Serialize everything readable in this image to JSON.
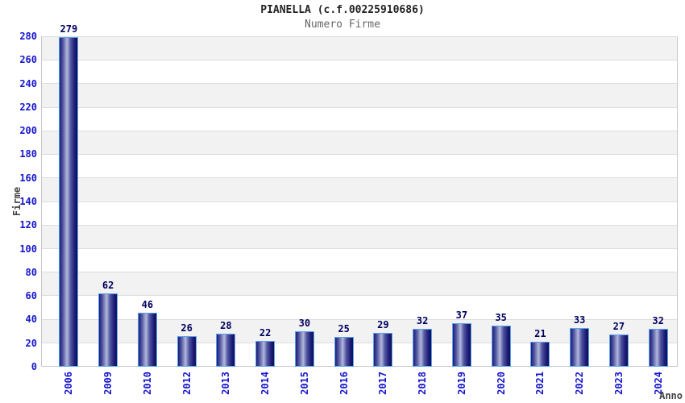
{
  "chart_data": {
    "type": "bar",
    "title": "PIANELLA (c.f.00225910686)",
    "subtitle": "Numero Firme",
    "xlabel": "Anno",
    "ylabel": "Firme",
    "categories": [
      "2006",
      "2009",
      "2010",
      "2012",
      "2013",
      "2014",
      "2015",
      "2016",
      "2017",
      "2018",
      "2019",
      "2020",
      "2021",
      "2022",
      "2023",
      "2024"
    ],
    "values": [
      279,
      62,
      46,
      26,
      28,
      22,
      30,
      25,
      29,
      32,
      37,
      35,
      21,
      33,
      27,
      32
    ],
    "ylim": [
      0,
      280
    ],
    "ytick_step": 20,
    "grid": "alternating-horizontal-bands",
    "legend": "none",
    "colors": {
      "tick_label": "#1515cd",
      "value_label": "#00005f",
      "title": "#222222",
      "subtitle": "#666666",
      "axis_label": "#444444",
      "band_gray": "#f2f2f2",
      "band_white": "#ffffff",
      "gridline": "#dddddd",
      "plot_border": "#c8c8c8",
      "bar_border": "#5aa2f0",
      "bar_dark": "#1e1e7c",
      "bar_mid": "#50559f",
      "bar_light": "#b2b8dc",
      "bar_darkest": "#10104f"
    }
  }
}
